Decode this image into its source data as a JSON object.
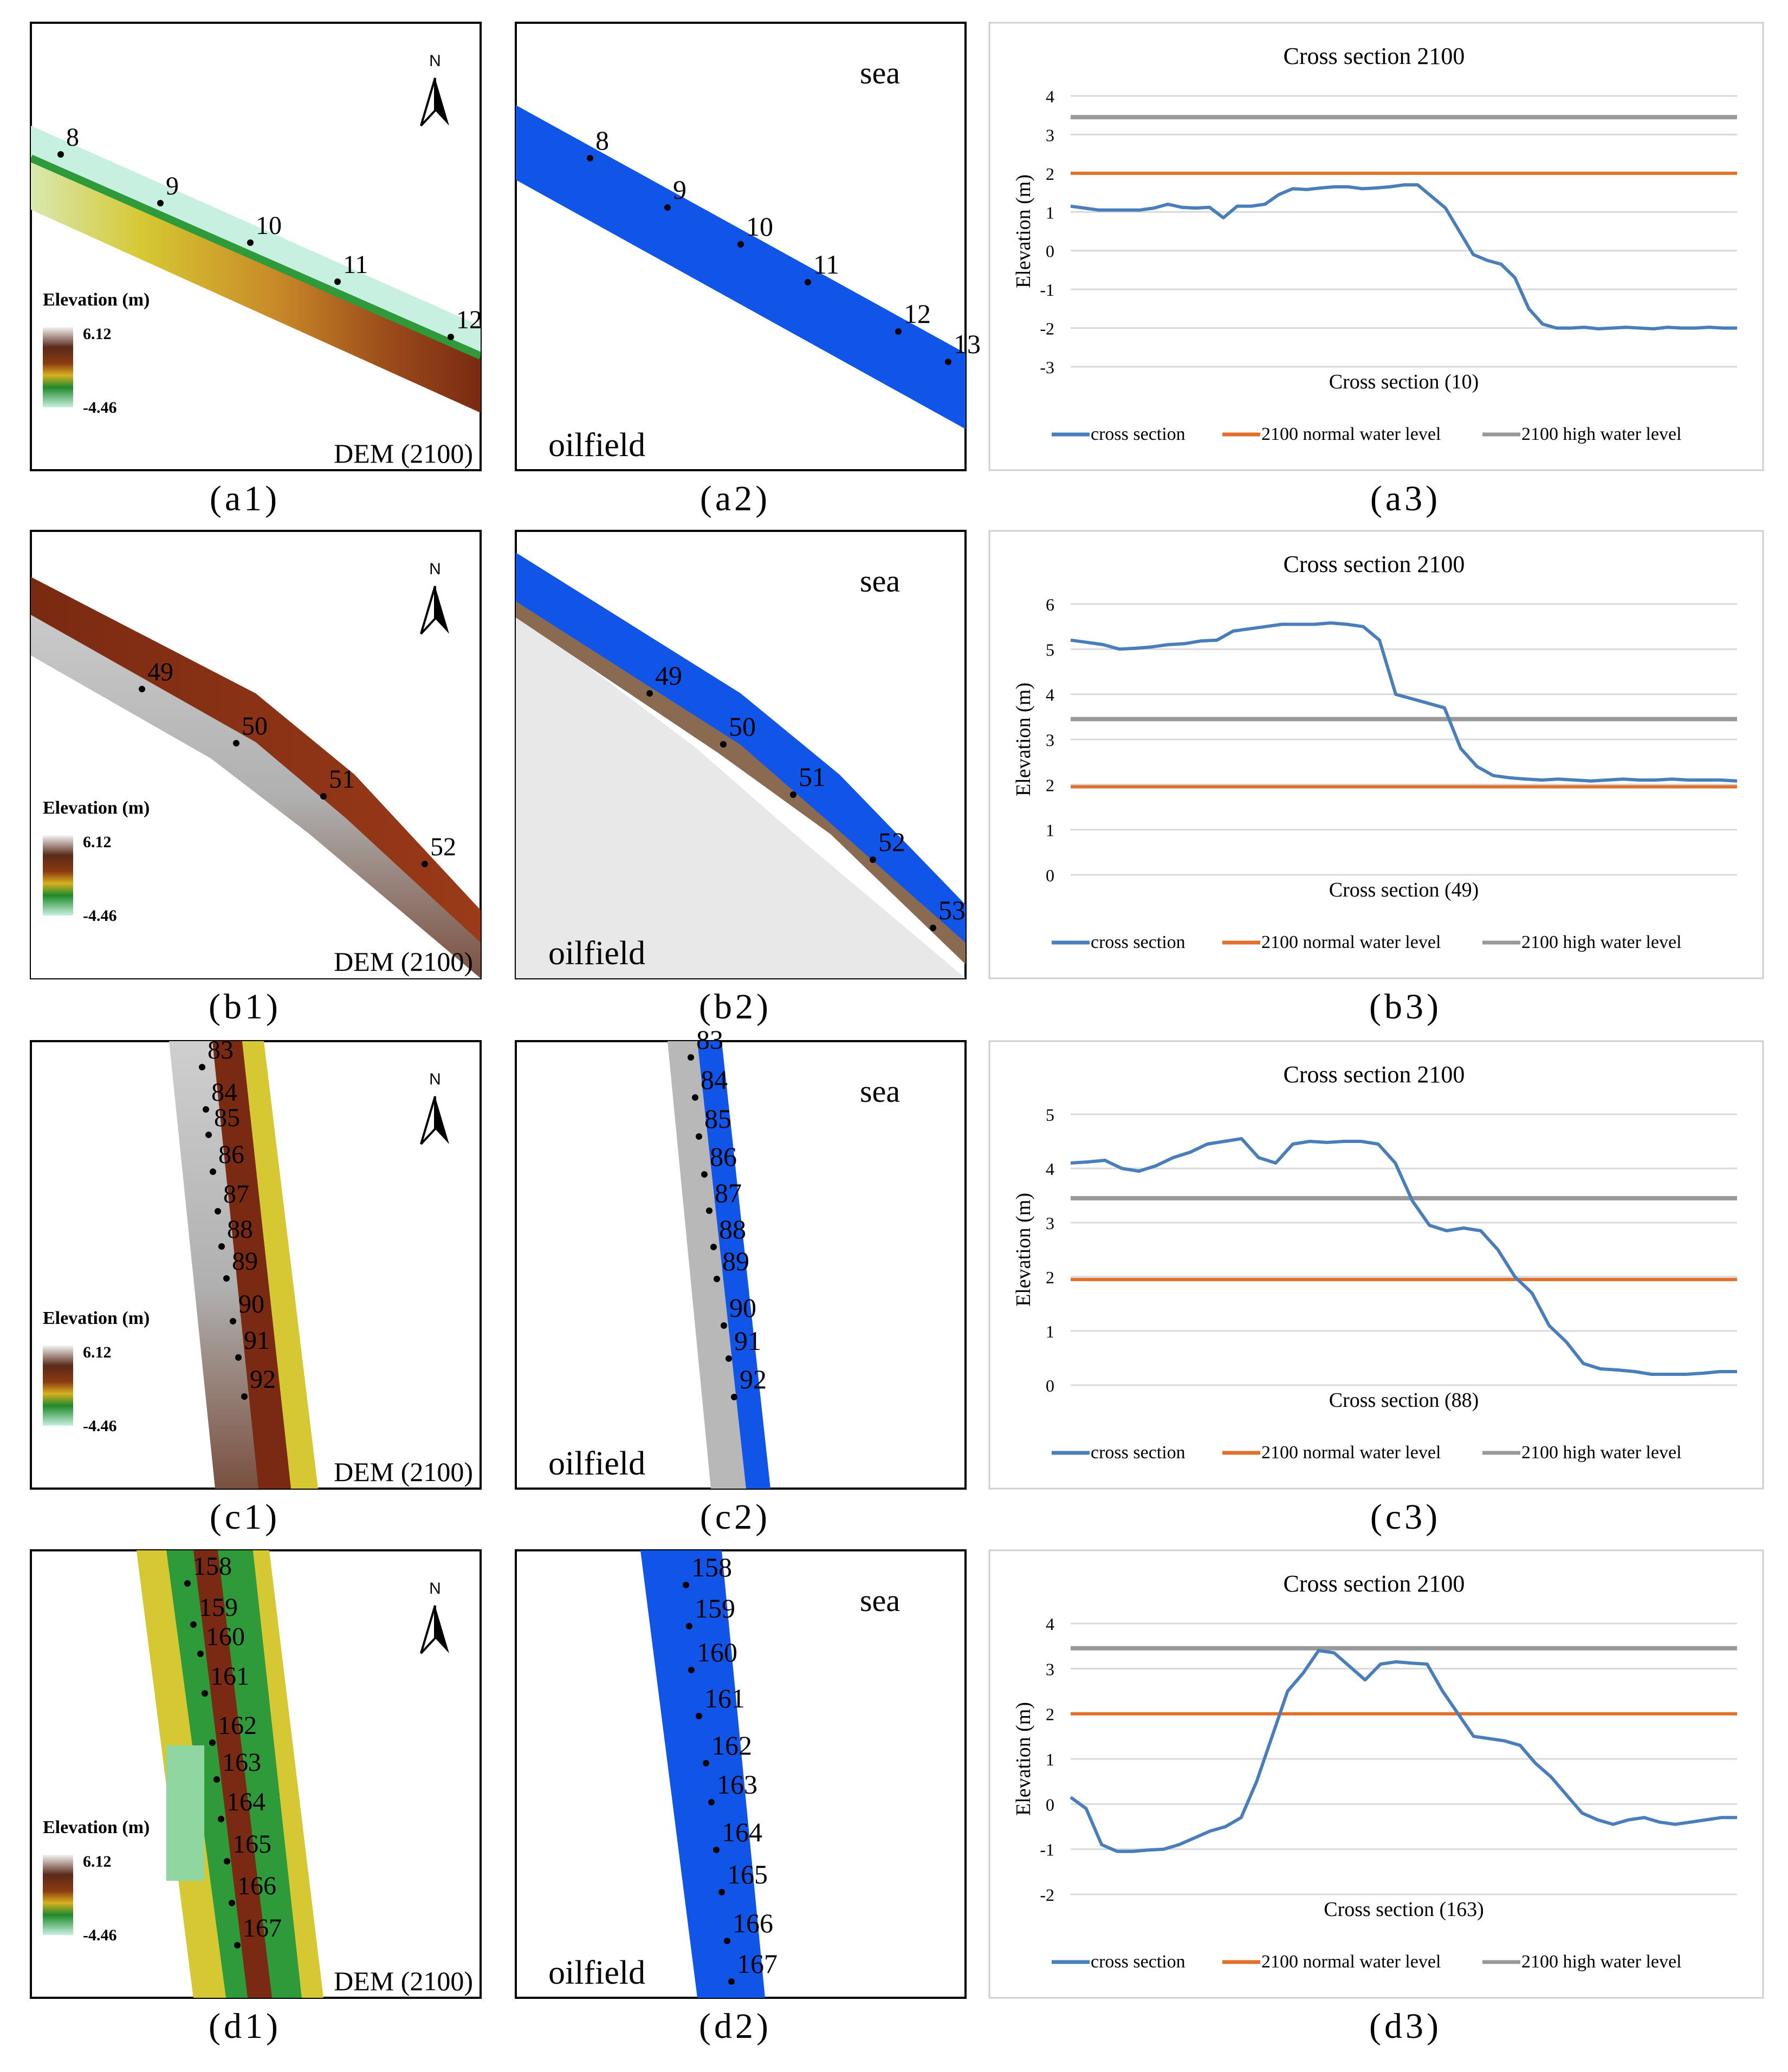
{
  "rows": [
    {
      "id": "a",
      "dem": {
        "caption": "(a1)",
        "label": "DEM (2100)",
        "legend_title": "Elevation (m)",
        "legend_max": "6.12",
        "legend_min": "-4.46",
        "north": "N",
        "points": [
          "8",
          "9",
          "10",
          "11",
          "12"
        ]
      },
      "flood": {
        "caption": "(a2)",
        "sea_label": "sea",
        "oilfield_label": "oilfield",
        "points": [
          "8",
          "9",
          "10",
          "11",
          "12",
          "13"
        ]
      },
      "chart_caption": "(a3)"
    },
    {
      "id": "b",
      "dem": {
        "caption": "(b1)",
        "label": "DEM (2100)",
        "legend_title": "Elevation (m)",
        "legend_max": "6.12",
        "legend_min": "-4.46",
        "north": "N",
        "points": [
          "49",
          "50",
          "51",
          "52"
        ]
      },
      "flood": {
        "caption": "(b2)",
        "sea_label": "sea",
        "oilfield_label": "oilfield",
        "points": [
          "49",
          "50",
          "51",
          "52",
          "53"
        ]
      },
      "chart_caption": "(b3)"
    },
    {
      "id": "c",
      "dem": {
        "caption": "(c1)",
        "label": "DEM (2100)",
        "legend_title": "Elevation (m)",
        "legend_max": "6.12",
        "legend_min": "-4.46",
        "north": "N",
        "points": [
          "83",
          "84",
          "85",
          "86",
          "87",
          "88",
          "89",
          "90",
          "91",
          "92"
        ]
      },
      "flood": {
        "caption": "(c2)",
        "sea_label": "sea",
        "oilfield_label": "oilfield",
        "points": [
          "83",
          "84",
          "85",
          "86",
          "87",
          "88",
          "89",
          "90",
          "91",
          "92"
        ]
      },
      "chart_caption": "(c3)"
    },
    {
      "id": "d",
      "dem": {
        "caption": "(d1)",
        "label": "DEM (2100)",
        "legend_title": "Elevation (m)",
        "legend_max": "6.12",
        "legend_min": "-4.46",
        "north": "N",
        "points": [
          "158",
          "159",
          "160",
          "161",
          "162",
          "163",
          "164",
          "165",
          "166",
          "167"
        ]
      },
      "flood": {
        "caption": "(d2)",
        "sea_label": "sea",
        "oilfield_label": "oilfield",
        "points": [
          "158",
          "159",
          "160",
          "161",
          "162",
          "163",
          "164",
          "165",
          "166",
          "167"
        ]
      },
      "chart_caption": "(d3)"
    }
  ],
  "colors": {
    "cross_section": "#4a7ebb",
    "normal_water": "#e0702b",
    "high_water": "#999999",
    "flood": "#1055e8",
    "dem_low": "#c8f0e0",
    "dem_mid": "#2e9a3a",
    "dem_yellow": "#d6c832",
    "dem_high": "#7a2a12",
    "dem_top": "#e6e6e6"
  },
  "chart_data": [
    {
      "type": "line",
      "title": "Cross section 2100",
      "xlabel": "Cross section (10)",
      "ylabel": "Elevation (m)",
      "ylim": [
        -3,
        4
      ],
      "yticks": [
        "4",
        "3",
        "2",
        "1",
        "0",
        "-1",
        "-2",
        "-3"
      ],
      "series": [
        {
          "name": "cross section",
          "values": [
            1.15,
            1.1,
            1.05,
            1.05,
            1.05,
            1.05,
            1.1,
            1.2,
            1.12,
            1.1,
            1.12,
            0.85,
            1.15,
            1.15,
            1.2,
            1.45,
            1.6,
            1.58,
            1.62,
            1.65,
            1.65,
            1.6,
            1.62,
            1.65,
            1.7,
            1.7,
            1.4,
            1.1,
            0.5,
            -0.1,
            -0.25,
            -0.35,
            -0.7,
            -1.5,
            -1.9,
            -2.0,
            -2.0,
            -1.98,
            -2.02,
            -2.0,
            -1.98,
            -2.0,
            -2.02,
            -1.98,
            -2.0,
            -2.0,
            -1.98,
            -2.0,
            -2.0
          ]
        },
        {
          "name": "2100 normal water level",
          "values": [
            2.0,
            2.0
          ]
        },
        {
          "name": "2100 high water level",
          "values": [
            3.45,
            3.45
          ]
        }
      ]
    },
    {
      "type": "line",
      "title": "Cross section 2100",
      "xlabel": "Cross section (49)",
      "ylabel": "Elevation (m)",
      "ylim": [
        0,
        6
      ],
      "yticks": [
        "6",
        "5",
        "4",
        "3",
        "2",
        "1",
        "0"
      ],
      "series": [
        {
          "name": "cross section",
          "values": [
            5.2,
            5.15,
            5.1,
            5.0,
            5.02,
            5.05,
            5.1,
            5.12,
            5.18,
            5.2,
            5.4,
            5.45,
            5.5,
            5.55,
            5.55,
            5.55,
            5.58,
            5.55,
            5.5,
            5.2,
            4.0,
            3.9,
            3.8,
            3.7,
            2.8,
            2.4,
            2.2,
            2.15,
            2.12,
            2.1,
            2.12,
            2.1,
            2.08,
            2.1,
            2.12,
            2.1,
            2.1,
            2.12,
            2.1,
            2.1,
            2.1,
            2.08
          ]
        },
        {
          "name": "2100 normal water level",
          "values": [
            1.95,
            1.95
          ]
        },
        {
          "name": "2100 high water level",
          "values": [
            3.45,
            3.45
          ]
        }
      ]
    },
    {
      "type": "line",
      "title": "Cross section 2100",
      "xlabel": "Cross section (88)",
      "ylabel": "Elevation (m)",
      "ylim": [
        0,
        5
      ],
      "yticks": [
        "5",
        "4",
        "3",
        "2",
        "1",
        "0"
      ],
      "series": [
        {
          "name": "cross section",
          "values": [
            4.1,
            4.12,
            4.15,
            4.0,
            3.95,
            4.05,
            4.2,
            4.3,
            4.45,
            4.5,
            4.55,
            4.2,
            4.1,
            4.45,
            4.5,
            4.48,
            4.5,
            4.5,
            4.45,
            4.1,
            3.4,
            2.95,
            2.85,
            2.9,
            2.85,
            2.5,
            2.0,
            1.7,
            1.1,
            0.8,
            0.4,
            0.3,
            0.28,
            0.25,
            0.2,
            0.2,
            0.2,
            0.22,
            0.25,
            0.25
          ]
        },
        {
          "name": "2100 normal water level",
          "values": [
            1.95,
            1.95
          ]
        },
        {
          "name": "2100 high water level",
          "values": [
            3.45,
            3.45
          ]
        }
      ]
    },
    {
      "type": "line",
      "title": "Cross section 2100",
      "xlabel": "Cross section (163)",
      "ylabel": "Elevation (m)",
      "ylim": [
        -2,
        4
      ],
      "yticks": [
        "4",
        "3",
        "2",
        "1",
        "0",
        "-1",
        "-2"
      ],
      "series": [
        {
          "name": "cross section",
          "values": [
            0.15,
            -0.1,
            -0.9,
            -1.05,
            -1.05,
            -1.02,
            -1.0,
            -0.9,
            -0.75,
            -0.6,
            -0.5,
            -0.3,
            0.5,
            1.5,
            2.5,
            2.9,
            3.4,
            3.35,
            3.05,
            2.75,
            3.1,
            3.15,
            3.12,
            3.1,
            2.5,
            2.0,
            1.5,
            1.45,
            1.4,
            1.3,
            0.9,
            0.6,
            0.2,
            -0.2,
            -0.35,
            -0.45,
            -0.35,
            -0.3,
            -0.4,
            -0.45,
            -0.4,
            -0.35,
            -0.3,
            -0.3
          ]
        },
        {
          "name": "2100 normal water level",
          "values": [
            2.0,
            2.0
          ]
        },
        {
          "name": "2100 high water level",
          "values": [
            3.45,
            3.45
          ]
        }
      ]
    }
  ]
}
